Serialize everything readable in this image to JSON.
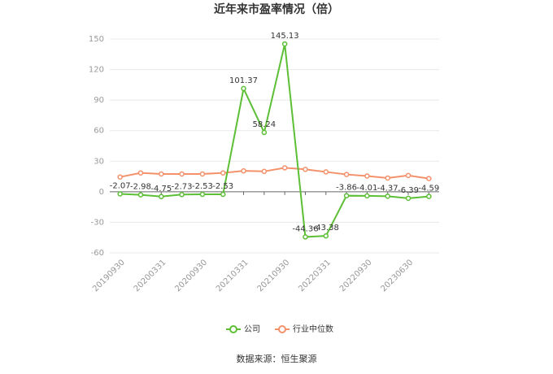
{
  "chart_data": {
    "type": "line",
    "title": "近年来市盈率情况（倍）",
    "categories": [
      "20190930",
      null,
      "20200331",
      null,
      "20200930",
      null,
      "20210331",
      null,
      "20210930",
      null,
      "20220331",
      null,
      "20220930",
      null,
      "20230630",
      null
    ],
    "series": [
      {
        "name": "公司",
        "color": "#5cbf36",
        "values": [
          -2.07,
          -2.98,
          -4.75,
          -2.73,
          -2.53,
          -2.53,
          101.37,
          58.24,
          145.13,
          -44.36,
          -43.38,
          -3.86,
          -4.01,
          -4.37,
          -6.39,
          -4.59
        ]
      },
      {
        "name": "行业中位数",
        "color": "#f4916b",
        "values": [
          14.5,
          18.5,
          17.5,
          17.5,
          17.5,
          18.5,
          20.5,
          20,
          23.5,
          22,
          19.5,
          17,
          15.5,
          13.5,
          16,
          13
        ]
      }
    ],
    "ylim": [
      -60,
      150
    ],
    "yticks": [
      -60,
      -30,
      0,
      30,
      60,
      90,
      120,
      150
    ],
    "grid": true,
    "source": "数据来源：恒生聚源"
  }
}
